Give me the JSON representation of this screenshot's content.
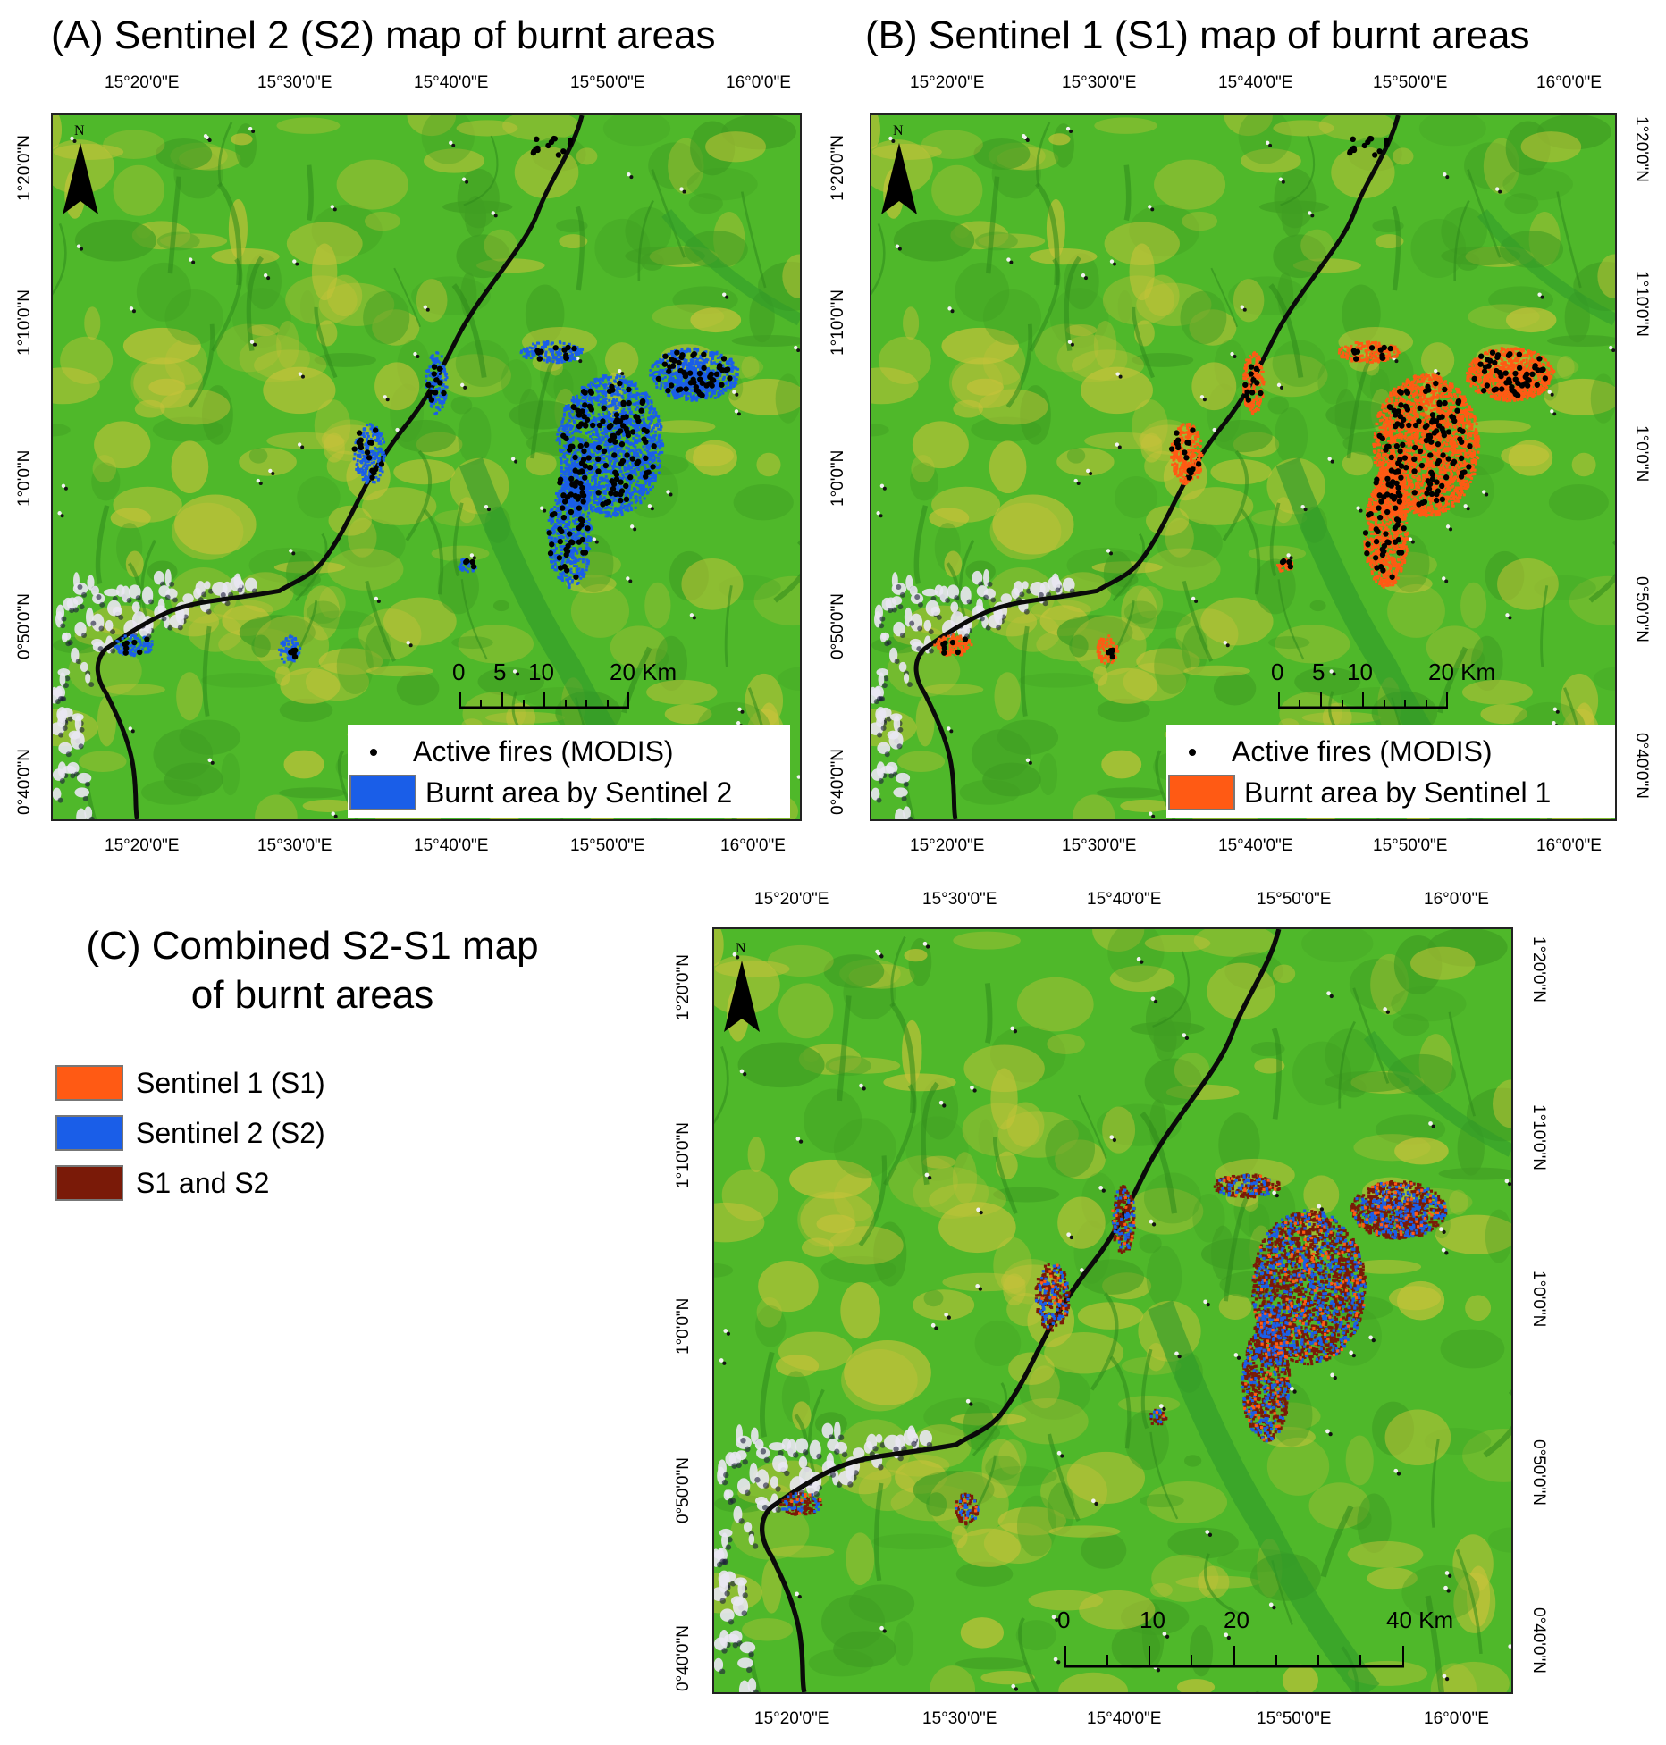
{
  "colors": {
    "s2_blue": "#1a5ee8",
    "s1_orange": "#ff5a14",
    "both_darkred": "#7a1a08",
    "fire_black": "#000000",
    "vegetation_green": "#4fb82a",
    "vegetation_yellow": "#c7c33a",
    "river_black": "#0a0a0a",
    "cloud_white": "#e9e7f2"
  },
  "panels": {
    "a": {
      "title": "(A) Sentinel 2 (S2) map of burnt areas",
      "legend": {
        "fires": "Active fires (MODIS)",
        "burnt": "Burnt area by Sentinel 2"
      },
      "scale": {
        "labels": [
          "0",
          "5",
          "10",
          "20 Km"
        ]
      }
    },
    "b": {
      "title": "(B) Sentinel 1 (S1) map of burnt areas",
      "legend": {
        "fires": "Active fires (MODIS)",
        "burnt": "Burnt area by Sentinel 1"
      },
      "scale": {
        "labels": [
          "0",
          "5",
          "10",
          "20 Km"
        ]
      }
    },
    "c": {
      "title_line1": "(C) Combined S2-S1 map",
      "title_line2": "of burnt areas",
      "legend": {
        "s1": "Sentinel 1 (S1)",
        "s2": "Sentinel 2 (S2)",
        "both": "S1 and S2"
      },
      "scale": {
        "labels": [
          "0",
          "10",
          "20",
          "40 Km"
        ]
      }
    }
  },
  "axes": {
    "lon_labels": [
      "15°20'0\"E",
      "15°30'0\"E",
      "15°40'0\"E",
      "15°50'0\"E",
      "16°0'0\"E"
    ],
    "lat_labels": [
      "1°20'0\"N",
      "1°10'0\"N",
      "1°0'0\"N",
      "0°50'0\"N",
      "0°40'0\"N"
    ]
  },
  "north_label": "N"
}
